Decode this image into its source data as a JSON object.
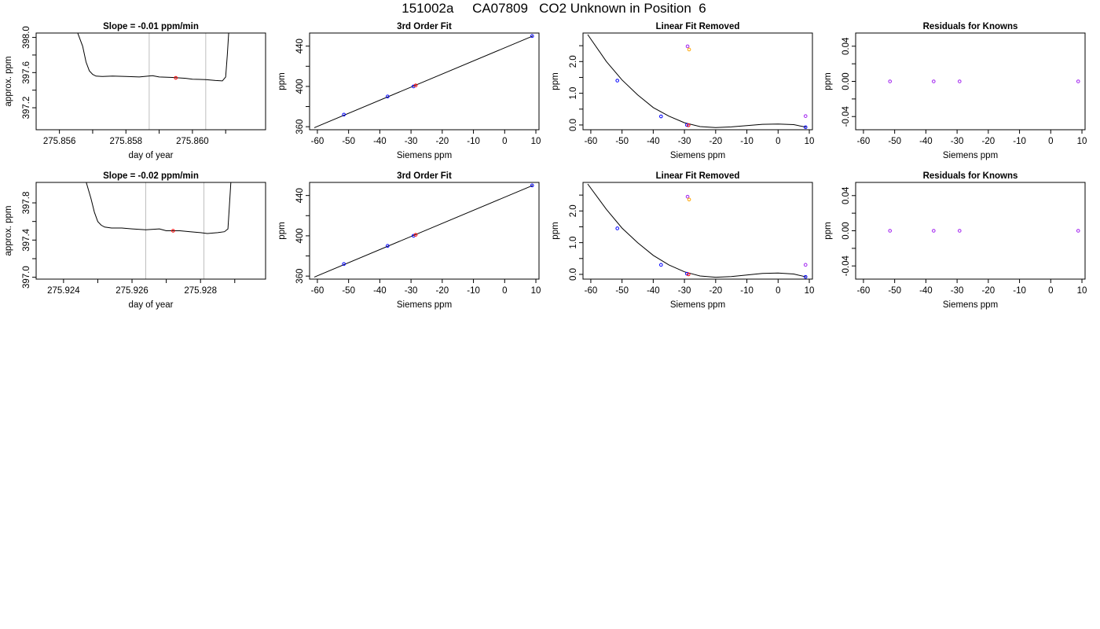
{
  "page_title": "151002a     CA07809   CO2 Unknown in Position  6",
  "colors": {
    "line": "#000000",
    "frame": "#000000",
    "vline": "#bebebe",
    "known_point": "#0000ff",
    "unknown_point": "#ff0000",
    "orange_point": "#ffa500",
    "purple_point": "#a020f0"
  },
  "chart_data": [
    {
      "id": "r1c1",
      "type": "line",
      "title": "Slope =  -0.01  ppm/min",
      "xlabel": "day of year",
      "ylabel": "approx. ppm",
      "xlim": [
        275.8553,
        275.8622
      ],
      "ylim": [
        396.95,
        398.05
      ],
      "xticks": [
        275.856,
        275.857,
        275.858,
        275.859,
        275.86,
        275.861
      ],
      "xtick_labels": [
        "275.856",
        "",
        "275.858",
        "",
        "275.860",
        ""
      ],
      "yticks": [
        397.2,
        397.4,
        397.6,
        397.8,
        398.0
      ],
      "ytick_labels": [
        "397.2",
        "",
        "397.6",
        "",
        "398.0"
      ],
      "vlines": [
        275.8587,
        275.8604
      ],
      "series": [
        {
          "x": [
            275.8565,
            275.8567,
            275.8568,
            275.8569,
            275.857,
            275.8571,
            275.8573,
            275.8576,
            275.858,
            275.8584,
            275.8588,
            275.859,
            275.8594,
            275.8598,
            275.86,
            275.8604,
            275.8607,
            275.8609,
            275.861,
            275.86105,
            275.8611
          ],
          "y": [
            398.1,
            397.9,
            397.72,
            397.62,
            397.58,
            397.56,
            397.555,
            397.56,
            397.555,
            397.55,
            397.565,
            397.55,
            397.545,
            397.535,
            397.525,
            397.52,
            397.51,
            397.505,
            397.55,
            397.8,
            398.1
          ]
        }
      ],
      "points": [
        {
          "x": 275.8595,
          "y": 397.54,
          "color": "unknown_point"
        }
      ]
    },
    {
      "id": "r1c2",
      "type": "line",
      "title": "3rd Order Fit",
      "xlabel": "Siemens ppm",
      "ylabel": "ppm",
      "xlim": [
        -62.5,
        11
      ],
      "ylim": [
        357,
        453
      ],
      "xticks": [
        -60,
        -50,
        -40,
        -30,
        -20,
        -10,
        0,
        10
      ],
      "xtick_labels": [
        "-60",
        "-50",
        "-40",
        "-30",
        "-20",
        "-10",
        "0",
        "10"
      ],
      "yticks": [
        360,
        380,
        400,
        420,
        440
      ],
      "ytick_labels": [
        "360",
        "",
        "400",
        "",
        "440"
      ],
      "series": [
        {
          "x": [
            -61,
            9
          ],
          "y": [
            359,
            450
          ]
        }
      ],
      "points": [
        {
          "x": -51.5,
          "y": 372,
          "color": "known_point"
        },
        {
          "x": -37.5,
          "y": 390,
          "color": "known_point"
        },
        {
          "x": -29.2,
          "y": 400,
          "color": "known_point"
        },
        {
          "x": -28.5,
          "y": 401,
          "color": "unknown_point"
        },
        {
          "x": 8.8,
          "y": 450,
          "color": "known_point"
        }
      ]
    },
    {
      "id": "r1c3",
      "type": "line",
      "title": "Linear Fit Removed",
      "xlabel": "Siemens ppm",
      "ylabel": "ppm",
      "xlim": [
        -62.5,
        11
      ],
      "ylim": [
        -0.15,
        2.9
      ],
      "xticks": [
        -60,
        -50,
        -40,
        -30,
        -20,
        -10,
        0,
        10
      ],
      "xtick_labels": [
        "-60",
        "-50",
        "-40",
        "-30",
        "-20",
        "-10",
        "0",
        "10"
      ],
      "yticks": [
        0.0,
        0.5,
        1.0,
        1.5,
        2.0,
        2.5
      ],
      "ytick_labels": [
        "0.0",
        "",
        "1.0",
        "",
        "2.0",
        ""
      ],
      "series": [
        {
          "x": [
            -61,
            -55,
            -50,
            -45,
            -40,
            -35,
            -30,
            -25,
            -20,
            -15,
            -10,
            -5,
            0,
            5,
            9
          ],
          "y": [
            2.85,
            2.0,
            1.42,
            0.95,
            0.55,
            0.28,
            0.07,
            -0.05,
            -0.08,
            -0.06,
            -0.02,
            0.02,
            0.03,
            0.01,
            -0.07
          ]
        }
      ],
      "points": [
        {
          "x": -51.5,
          "y": 1.4,
          "color": "known_point"
        },
        {
          "x": -37.5,
          "y": 0.27,
          "color": "known_point"
        },
        {
          "x": -29.2,
          "y": 0.0,
          "color": "known_point"
        },
        {
          "x": -28.7,
          "y": -0.01,
          "color": "unknown_point"
        },
        {
          "x": 8.8,
          "y": -0.07,
          "color": "known_point"
        },
        {
          "x": -29.0,
          "y": 2.48,
          "color": "purple_point"
        },
        {
          "x": -28.5,
          "y": 2.38,
          "color": "orange_point"
        },
        {
          "x": 8.8,
          "y": 0.28,
          "color": "purple_point"
        }
      ]
    },
    {
      "id": "r1c4",
      "type": "scatter",
      "title": "Residuals for Knowns",
      "xlabel": "Siemens ppm",
      "ylabel": "ppm",
      "xlim": [
        -62.5,
        11
      ],
      "ylim": [
        -0.055,
        0.055
      ],
      "xticks": [
        -60,
        -50,
        -40,
        -30,
        -20,
        -10,
        0,
        10
      ],
      "xtick_labels": [
        "-60",
        "-50",
        "-40",
        "-30",
        "-20",
        "-10",
        "0",
        "10"
      ],
      "yticks": [
        -0.04,
        -0.02,
        0.0,
        0.02,
        0.04
      ],
      "ytick_labels": [
        "-0.04",
        "",
        "0.00",
        "",
        "0.04"
      ],
      "series": [],
      "points": [
        {
          "x": -51.5,
          "y": 0.0,
          "color": "purple_point"
        },
        {
          "x": -37.5,
          "y": 0.0,
          "color": "purple_point"
        },
        {
          "x": -29.2,
          "y": 0.0,
          "color": "purple_point"
        },
        {
          "x": 8.8,
          "y": 0.0,
          "color": "purple_point"
        }
      ]
    },
    {
      "id": "r2c1",
      "type": "line",
      "title": "Slope =  -0.02  ppm/min",
      "xlabel": "day of year",
      "ylabel": "approx. ppm",
      "xlim": [
        275.9232,
        275.9299
      ],
      "ylim": [
        396.98,
        398.02
      ],
      "xticks": [
        275.924,
        275.925,
        275.926,
        275.927,
        275.928,
        275.929
      ],
      "xtick_labels": [
        "275.924",
        "",
        "275.926",
        "",
        "275.928",
        ""
      ],
      "yticks": [
        397.0,
        397.2,
        397.4,
        397.6,
        397.8
      ],
      "ytick_labels": [
        "397.0",
        "",
        "397.4",
        "",
        "397.8"
      ],
      "vlines": [
        275.9264,
        275.9281
      ],
      "series": [
        {
          "x": [
            275.9246,
            275.9248,
            275.9249,
            275.925,
            275.9251,
            275.9252,
            275.9254,
            275.9257,
            275.926,
            275.9264,
            275.9268,
            275.927,
            275.9274,
            275.9277,
            275.928,
            275.9282,
            275.9285,
            275.9287,
            275.9288,
            275.92885,
            275.9289
          ],
          "y": [
            398.1,
            397.85,
            397.7,
            397.6,
            397.56,
            397.54,
            397.53,
            397.53,
            397.52,
            397.51,
            397.52,
            397.5,
            397.5,
            397.49,
            397.48,
            397.47,
            397.48,
            397.49,
            397.52,
            397.8,
            398.1
          ]
        }
      ],
      "points": [
        {
          "x": 275.9272,
          "y": 397.5,
          "color": "unknown_point"
        }
      ]
    },
    {
      "id": "r2c2",
      "type": "line",
      "title": "3rd Order Fit",
      "xlabel": "Siemens ppm",
      "ylabel": "ppm",
      "xlim": [
        -62.5,
        11
      ],
      "ylim": [
        357,
        453
      ],
      "xticks": [
        -60,
        -50,
        -40,
        -30,
        -20,
        -10,
        0,
        10
      ],
      "xtick_labels": [
        "-60",
        "-50",
        "-40",
        "-30",
        "-20",
        "-10",
        "0",
        "10"
      ],
      "yticks": [
        360,
        380,
        400,
        420,
        440
      ],
      "ytick_labels": [
        "360",
        "",
        "400",
        "",
        "440"
      ],
      "series": [
        {
          "x": [
            -61,
            9
          ],
          "y": [
            359,
            450
          ]
        }
      ],
      "points": [
        {
          "x": -51.5,
          "y": 372,
          "color": "known_point"
        },
        {
          "x": -37.5,
          "y": 390,
          "color": "known_point"
        },
        {
          "x": -29.2,
          "y": 400,
          "color": "known_point"
        },
        {
          "x": -28.5,
          "y": 401,
          "color": "unknown_point"
        },
        {
          "x": 8.8,
          "y": 450,
          "color": "known_point"
        }
      ]
    },
    {
      "id": "r2c3",
      "type": "line",
      "title": "Linear Fit Removed",
      "xlabel": "Siemens ppm",
      "ylabel": "ppm",
      "xlim": [
        -62.5,
        11
      ],
      "ylim": [
        -0.15,
        2.9
      ],
      "xticks": [
        -60,
        -50,
        -40,
        -30,
        -20,
        -10,
        0,
        10
      ],
      "xtick_labels": [
        "-60",
        "-50",
        "-40",
        "-30",
        "-20",
        "-10",
        "0",
        "10"
      ],
      "yticks": [
        0.0,
        0.5,
        1.0,
        1.5,
        2.0,
        2.5
      ],
      "ytick_labels": [
        "0.0",
        "",
        "1.0",
        "",
        "2.0",
        ""
      ],
      "series": [
        {
          "x": [
            -61,
            -55,
            -50,
            -45,
            -40,
            -35,
            -30,
            -25,
            -20,
            -15,
            -10,
            -5,
            0,
            5,
            9
          ],
          "y": [
            2.85,
            2.05,
            1.46,
            1.0,
            0.6,
            0.3,
            0.08,
            -0.05,
            -0.09,
            -0.07,
            -0.02,
            0.03,
            0.04,
            0.01,
            -0.08
          ]
        }
      ],
      "points": [
        {
          "x": -51.5,
          "y": 1.45,
          "color": "known_point"
        },
        {
          "x": -37.5,
          "y": 0.3,
          "color": "known_point"
        },
        {
          "x": -29.2,
          "y": 0.02,
          "color": "known_point"
        },
        {
          "x": -28.7,
          "y": 0.0,
          "color": "unknown_point"
        },
        {
          "x": 8.8,
          "y": -0.08,
          "color": "known_point"
        },
        {
          "x": -29.0,
          "y": 2.45,
          "color": "purple_point"
        },
        {
          "x": -28.5,
          "y": 2.36,
          "color": "orange_point"
        },
        {
          "x": 8.8,
          "y": 0.3,
          "color": "purple_point"
        }
      ]
    },
    {
      "id": "r2c4",
      "type": "scatter",
      "title": "Residuals for Knowns",
      "xlabel": "Siemens ppm",
      "ylabel": "ppm",
      "xlim": [
        -62.5,
        11
      ],
      "ylim": [
        -0.055,
        0.055
      ],
      "xticks": [
        -60,
        -50,
        -40,
        -30,
        -20,
        -10,
        0,
        10
      ],
      "xtick_labels": [
        "-60",
        "-50",
        "-40",
        "-30",
        "-20",
        "-10",
        "0",
        "10"
      ],
      "yticks": [
        -0.04,
        -0.02,
        0.0,
        0.02,
        0.04
      ],
      "ytick_labels": [
        "-0.04",
        "",
        "0.00",
        "",
        "0.04"
      ],
      "series": [],
      "points": [
        {
          "x": -51.5,
          "y": 0.0,
          "color": "purple_point"
        },
        {
          "x": -37.5,
          "y": 0.0,
          "color": "purple_point"
        },
        {
          "x": -29.2,
          "y": 0.0,
          "color": "purple_point"
        },
        {
          "x": 8.8,
          "y": 0.0,
          "color": "purple_point"
        }
      ]
    }
  ]
}
